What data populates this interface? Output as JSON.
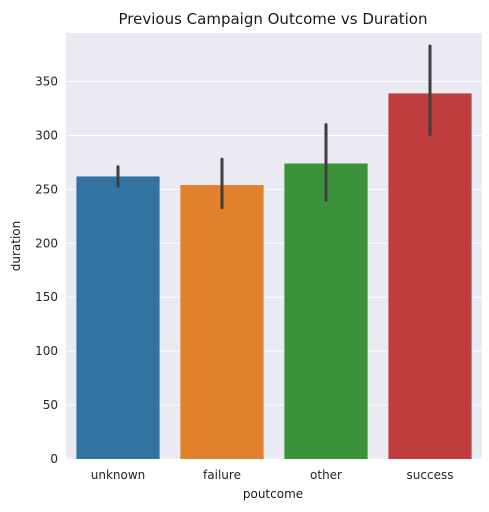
{
  "chart_data": {
    "type": "bar",
    "title": "Previous Campaign Outcome vs Duration",
    "xlabel": "poutcome",
    "ylabel": "duration",
    "categories": [
      "unknown",
      "failure",
      "other",
      "success"
    ],
    "values": [
      262,
      254,
      274,
      339
    ],
    "error_bars": [
      {
        "low": 253,
        "high": 271
      },
      {
        "low": 233,
        "high": 278
      },
      {
        "low": 240,
        "high": 310
      },
      {
        "low": 301,
        "high": 383
      }
    ],
    "colors": [
      "#3274a1",
      "#e1812c",
      "#3a923a",
      "#c03d3e"
    ],
    "errorbar_color": "#3d3d3d",
    "ylim": [
      0,
      395
    ],
    "yticks": [
      0,
      50,
      100,
      150,
      200,
      250,
      300,
      350
    ],
    "grid": true,
    "grid_axis": "y",
    "background": "#eaeaf2",
    "grid_color": "#ffffff"
  }
}
